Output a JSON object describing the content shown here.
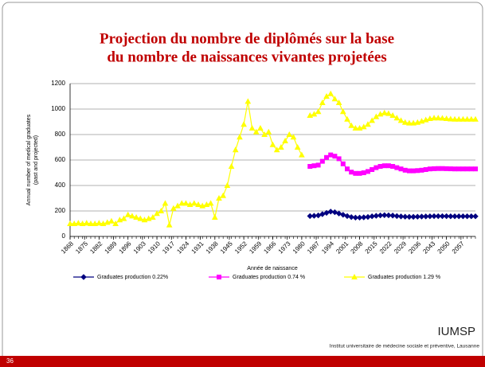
{
  "chart_data": {
    "type": "line",
    "title": [
      "Projection du nombre de diplômés sur la base",
      "du nombre de naissances vivantes projetées"
    ],
    "y_label": [
      "Annual number of medical graduates",
      "(past and projected)"
    ],
    "x_label": "Année de naissance",
    "x": [
      1868,
      1870,
      1872,
      1874,
      1876,
      1878,
      1880,
      1882,
      1884,
      1886,
      1888,
      1890,
      1892,
      1894,
      1896,
      1898,
      1900,
      1902,
      1904,
      1906,
      1908,
      1910,
      1912,
      1914,
      1916,
      1918,
      1920,
      1922,
      1924,
      1926,
      1928,
      1930,
      1932,
      1934,
      1936,
      1938,
      1940,
      1942,
      1944,
      1946,
      1948,
      1950,
      1952,
      1954,
      1956,
      1958,
      1960,
      1962,
      1964,
      1966,
      1968,
      1970,
      1972,
      1974,
      1976,
      1978,
      1980,
      1982,
      1984,
      1986,
      1988,
      1990,
      1992,
      1994,
      1996,
      1998,
      2000,
      2002,
      2004,
      2006,
      2008,
      2010,
      2012,
      2014,
      2016,
      2018,
      2020,
      2022,
      2024,
      2026,
      2028,
      2030,
      2032,
      2034,
      2036,
      2038,
      2040,
      2042,
      2044,
      2046,
      2048,
      2050,
      2052,
      2054,
      2056,
      2058,
      2060,
      2062,
      2064
    ],
    "series": [
      {
        "name": "Graduates production 0.22%",
        "color": "#000080",
        "marker": "diamond",
        "values": [
          null,
          null,
          null,
          null,
          null,
          null,
          null,
          null,
          null,
          null,
          null,
          null,
          null,
          null,
          null,
          null,
          null,
          null,
          null,
          null,
          null,
          null,
          null,
          null,
          null,
          null,
          null,
          null,
          null,
          null,
          null,
          null,
          null,
          null,
          null,
          null,
          null,
          null,
          null,
          null,
          null,
          null,
          null,
          null,
          null,
          null,
          null,
          null,
          null,
          null,
          null,
          null,
          null,
          null,
          null,
          null,
          null,
          null,
          160,
          162,
          165,
          175,
          185,
          195,
          190,
          180,
          170,
          160,
          152,
          148,
          148,
          150,
          153,
          158,
          162,
          165,
          167,
          166,
          164,
          160,
          157,
          155,
          154,
          154,
          155,
          156,
          157,
          158,
          159,
          159,
          159,
          159,
          158,
          158,
          158,
          158,
          158,
          158,
          158
        ]
      },
      {
        "name": "Graduates production 0.74 %",
        "color": "#ff00ff",
        "marker": "square",
        "values": [
          null,
          null,
          null,
          null,
          null,
          null,
          null,
          null,
          null,
          null,
          null,
          null,
          null,
          null,
          null,
          null,
          null,
          null,
          null,
          null,
          null,
          null,
          null,
          null,
          null,
          null,
          null,
          null,
          null,
          null,
          null,
          null,
          null,
          null,
          null,
          null,
          null,
          null,
          null,
          null,
          null,
          null,
          null,
          null,
          null,
          null,
          null,
          null,
          null,
          null,
          null,
          null,
          null,
          null,
          null,
          null,
          null,
          null,
          550,
          555,
          560,
          590,
          620,
          640,
          630,
          610,
          570,
          530,
          505,
          495,
          495,
          500,
          510,
          525,
          540,
          550,
          555,
          555,
          550,
          540,
          530,
          520,
          515,
          515,
          517,
          520,
          525,
          530,
          532,
          533,
          533,
          532,
          531,
          530,
          530,
          530,
          530,
          530,
          530
        ]
      },
      {
        "name": "Graduates production 1.29 %",
        "color": "#ffff00",
        "marker": "triangle",
        "values": [
          100,
          100,
          105,
          100,
          105,
          100,
          100,
          105,
          100,
          110,
          120,
          100,
          130,
          140,
          170,
          160,
          150,
          140,
          130,
          140,
          150,
          180,
          200,
          260,
          90,
          220,
          240,
          260,
          260,
          250,
          260,
          250,
          240,
          250,
          260,
          150,
          300,
          320,
          400,
          550,
          680,
          780,
          880,
          1060,
          850,
          820,
          850,
          800,
          820,
          720,
          680,
          700,
          750,
          800,
          780,
          700,
          640,
          null,
          950,
          960,
          980,
          1050,
          1100,
          1120,
          1080,
          1050,
          980,
          920,
          870,
          850,
          850,
          860,
          880,
          910,
          940,
          960,
          970,
          965,
          950,
          930,
          910,
          895,
          890,
          890,
          895,
          905,
          915,
          925,
          930,
          930,
          928,
          925,
          922,
          920,
          920,
          920,
          920,
          920,
          920
        ]
      }
    ],
    "xlim": [
      1868,
      2064
    ],
    "xticks": [
      1868,
      1875,
      1882,
      1889,
      1896,
      1903,
      1910,
      1917,
      1924,
      1931,
      1938,
      1945,
      1952,
      1959,
      1966,
      1973,
      1980,
      1987,
      1994,
      2001,
      2008,
      2015,
      2022,
      2029,
      2036,
      2043,
      2050,
      2057
    ],
    "ylim": [
      0,
      1200
    ],
    "yticks": [
      0,
      200,
      400,
      600,
      800,
      1000,
      1200
    ],
    "grid": true,
    "legend": "bottom"
  },
  "footer": {
    "brand": "IUMSP",
    "institution": "Institut universitaire de médecine sociale et préventive, Lausanne",
    "page": "36"
  }
}
